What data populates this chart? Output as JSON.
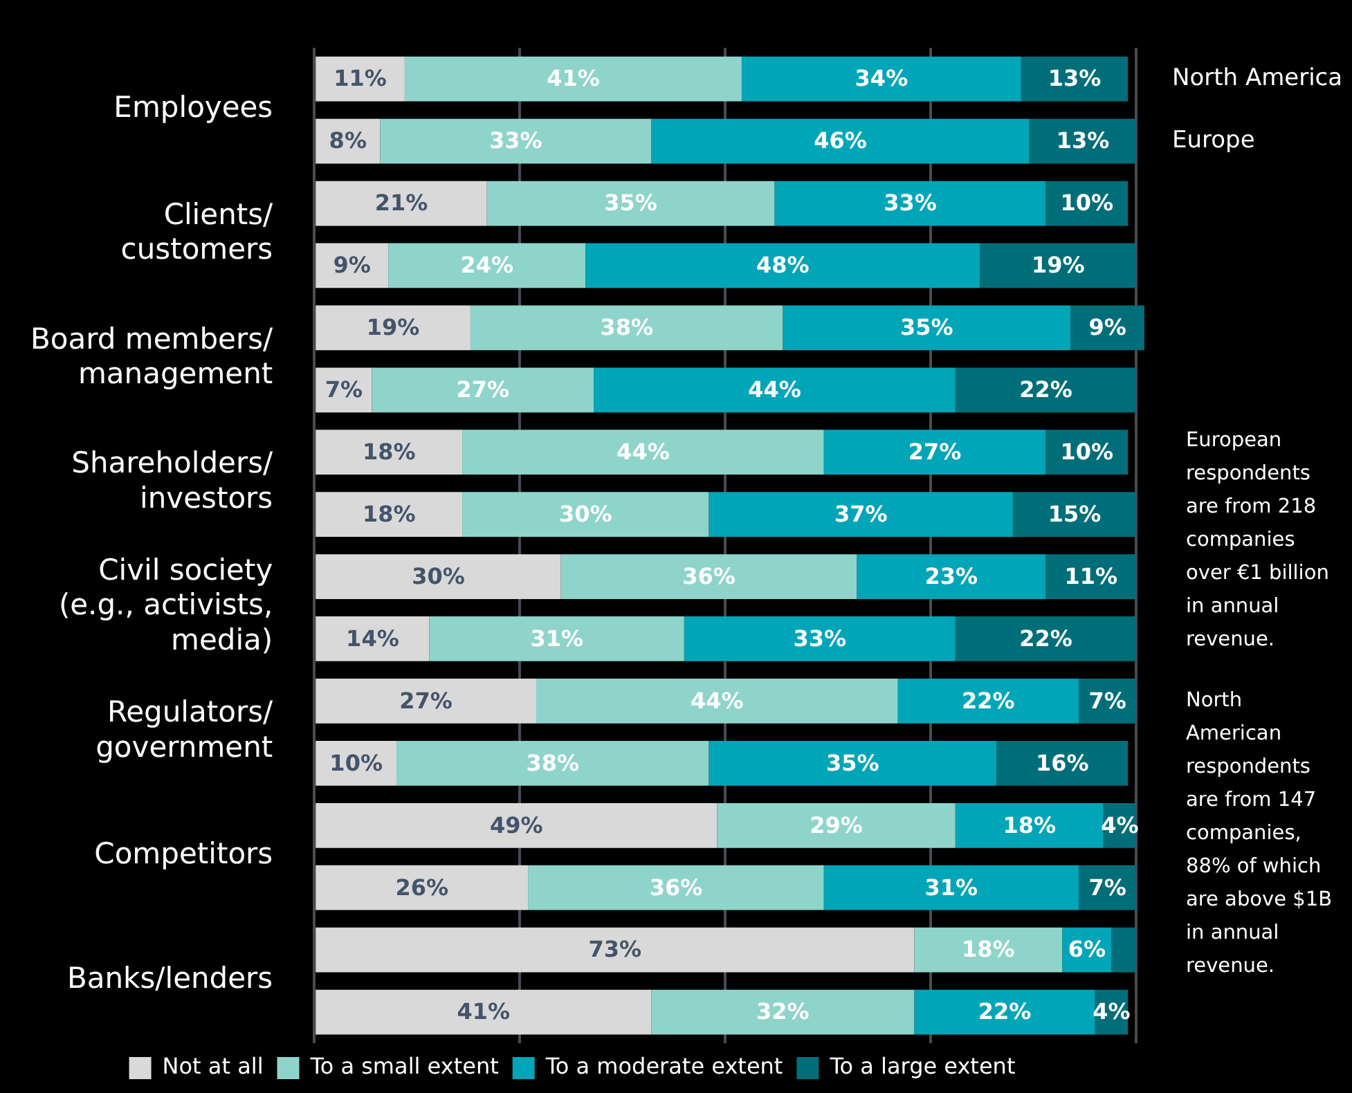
{
  "chart_data": {
    "type": "bar",
    "orientation": "horizontal",
    "stacked": true,
    "categories": [
      "Employees",
      null,
      "Clients/\ncustomers",
      null,
      "Board members/\nmanagement",
      null,
      "Shareholders/\ninvestors",
      null,
      "Civil society\n(e.g., activists,\nmedia)",
      null,
      "Regulators/\ngovernment",
      null,
      "Competitors",
      null,
      "Banks/lenders",
      null
    ],
    "series": [
      {
        "name": "Not at all",
        "color": "#d9d9d9",
        "values": [
          11,
          8,
          21,
          9,
          19,
          7,
          18,
          18,
          30,
          14,
          27,
          10,
          49,
          26,
          73,
          41
        ],
        "value_labels": [
          "11%",
          "8%",
          "21%",
          "9%",
          "19%",
          "7%",
          "18%",
          "18%",
          "30%",
          "14%",
          "27%",
          "10%",
          "49%",
          "26%",
          "73%",
          "41%"
        ]
      },
      {
        "name": "To a small extent",
        "color": "#8fd4ca",
        "values": [
          41,
          33,
          35,
          24,
          38,
          27,
          44,
          30,
          36,
          31,
          44,
          38,
          29,
          36,
          18,
          32
        ],
        "value_labels": [
          "41%",
          "33%",
          "35%",
          "24%",
          "38%",
          "27%",
          "44%",
          "30%",
          "36%",
          "31%",
          "44%",
          "38%",
          "29%",
          "36%",
          "18%",
          "32%"
        ]
      },
      {
        "name": "To a moderate extent",
        "color": "#00a5b8",
        "values": [
          34,
          46,
          33,
          48,
          35,
          44,
          27,
          37,
          23,
          33,
          22,
          35,
          18,
          31,
          6,
          22
        ],
        "value_labels": [
          "34%",
          "46%",
          "33%",
          "48%",
          "35%",
          "44%",
          "27%",
          "37%",
          "23%",
          "33%",
          "22%",
          "35%",
          "18%",
          "31%",
          "6%",
          "22%"
        ]
      },
      {
        "name": "To a large extent",
        "color": "#006e78",
        "values": [
          13,
          13,
          10,
          19,
          9,
          22,
          10,
          15,
          11,
          22,
          7,
          16,
          4,
          7,
          3,
          4
        ],
        "value_labels": [
          "13%",
          "13%",
          "10%",
          "19%",
          "9%",
          "22%",
          "10%",
          "15%",
          "11%",
          "22%",
          "7%",
          "16%",
          "4%",
          "7%",
          null,
          "4%"
        ]
      }
    ],
    "xlim": [
      0,
      101
    ],
    "xticks": [
      0,
      25,
      50,
      75,
      100
    ],
    "grid": "x",
    "tick_labels": "y",
    "legend": "bottom",
    "annotations": [
      "North America",
      "Europe",
      "European respondents are from 218 companies over €1 billion in annual revenue.",
      "North American respondents are from 147 companies, 88% of which are above $1B in annual revenue."
    ]
  }
}
